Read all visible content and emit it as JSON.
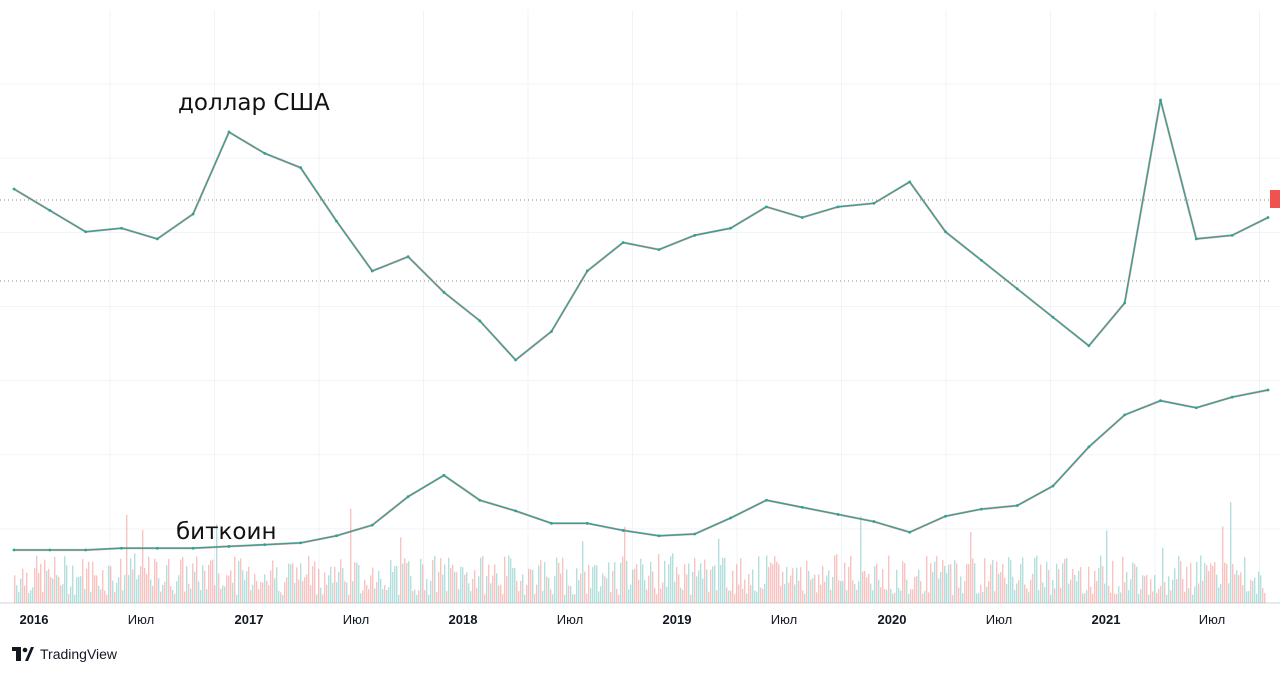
{
  "chart_data": {
    "type": "line",
    "source": "TradingView",
    "annotations": [
      "доллар США",
      "биткоин"
    ],
    "x_ticks": [
      "2016",
      "Июл",
      "2017",
      "Июл",
      "2018",
      "Июл",
      "2019",
      "Июл",
      "2020",
      "Июл",
      "2021",
      "Июл"
    ],
    "x": [
      "2016-01",
      "2016-03",
      "2016-05",
      "2016-07",
      "2016-09",
      "2016-11",
      "2017-01",
      "2017-03",
      "2017-05",
      "2017-07",
      "2017-09",
      "2017-11",
      "2018-01",
      "2018-03",
      "2018-05",
      "2018-07",
      "2018-09",
      "2018-11",
      "2019-01",
      "2019-03",
      "2019-05",
      "2019-07",
      "2019-09",
      "2019-11",
      "2020-01",
      "2020-03",
      "2020-05",
      "2020-07",
      "2020-09",
      "2020-11",
      "2021-01",
      "2021-03",
      "2021-05",
      "2021-07",
      "2021-09",
      "2021-11"
    ],
    "series": [
      {
        "name": "доллар США",
        "values": [
          70,
          64,
          58,
          59,
          56,
          63,
          86,
          80,
          76,
          61,
          47,
          51,
          41,
          33,
          22,
          30,
          47,
          55,
          53,
          57,
          59,
          65,
          62,
          65,
          66,
          72,
          58,
          50,
          42,
          34,
          26,
          38,
          95,
          56,
          57,
          62
        ]
      },
      {
        "name": "биткоин",
        "values": [
          2,
          2,
          2,
          3,
          3,
          3,
          4,
          5,
          6,
          10,
          16,
          32,
          44,
          30,
          24,
          17,
          17,
          13,
          10,
          11,
          20,
          30,
          26,
          22,
          18,
          12,
          21,
          25,
          27,
          38,
          60,
          78,
          86,
          82,
          88,
          92
        ]
      }
    ],
    "grid": true,
    "legend": "none"
  },
  "brand": {
    "name": "TradingView"
  }
}
